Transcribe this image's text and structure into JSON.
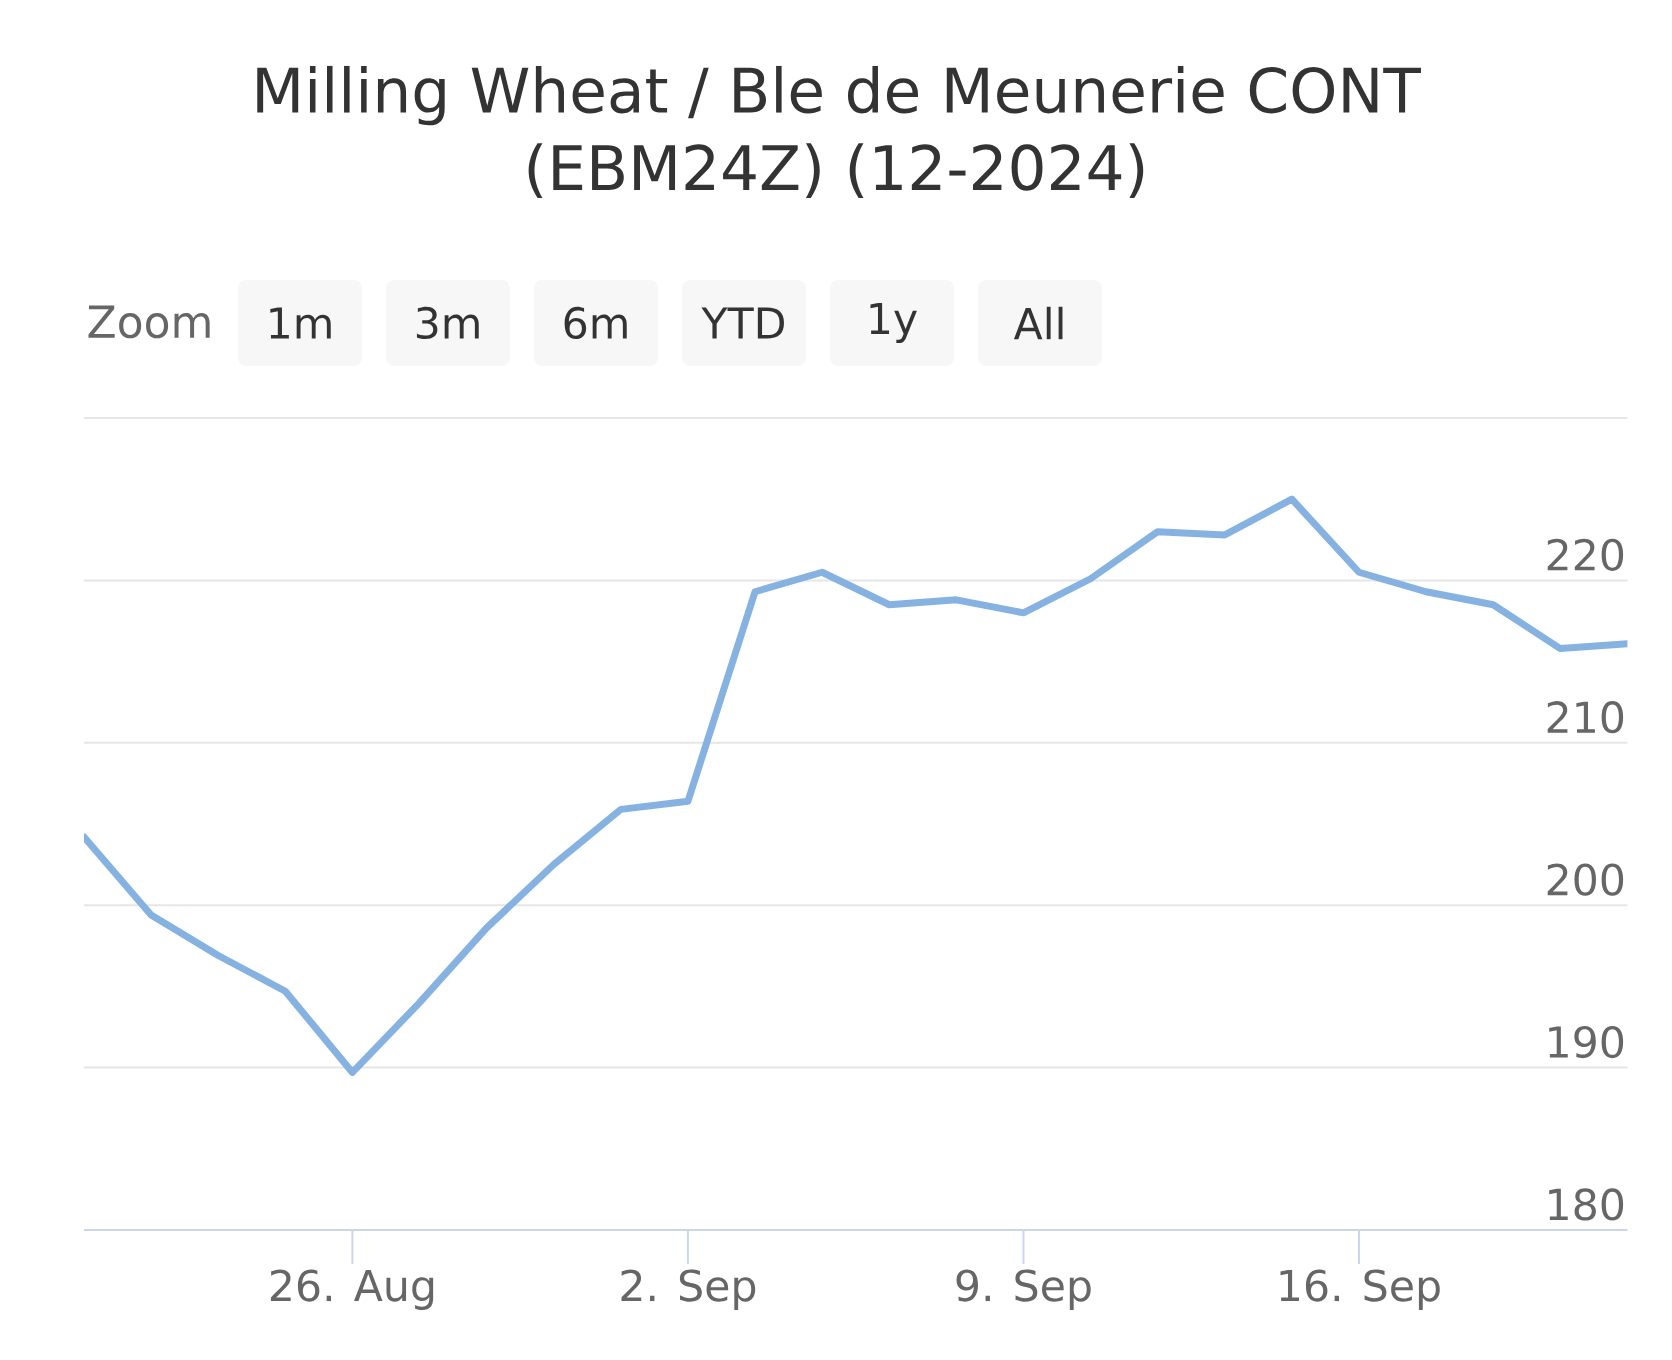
{
  "chart_data": {
    "type": "line",
    "title": "Milling Wheat / Ble de Meunerie CONT (EBM24Z) (12-2024)",
    "annotations": [
      "Zoom",
      "1m",
      "3m",
      "6m",
      "YTD",
      "1y",
      "All"
    ],
    "categories": [
      null,
      null,
      null,
      null,
      "26. Aug",
      null,
      null,
      null,
      null,
      "2. Sep",
      null,
      null,
      null,
      null,
      "9. Sep",
      null,
      null,
      null,
      null,
      "16. Sep",
      null,
      null,
      null,
      null
    ],
    "series": [
      {
        "color": "#86b2e2",
        "values": [
          204.2,
          199.4,
          196.9,
          194.7,
          189.7,
          194.0,
          198.6,
          202.5,
          205.9,
          206.4,
          219.3,
          220.5,
          218.5,
          218.8,
          218.0,
          220.1,
          223.0,
          222.8,
          225.0,
          220.5,
          219.3,
          218.5,
          215.8,
          216.1
        ]
      }
    ],
    "ylim": [
      180,
      230
    ],
    "yticks": [
      180,
      190,
      200,
      210,
      220,
      {
        "value": 230,
        "label": null
      }
    ],
    "grid": "y",
    "marker": "none",
    "line_style": "solid"
  }
}
